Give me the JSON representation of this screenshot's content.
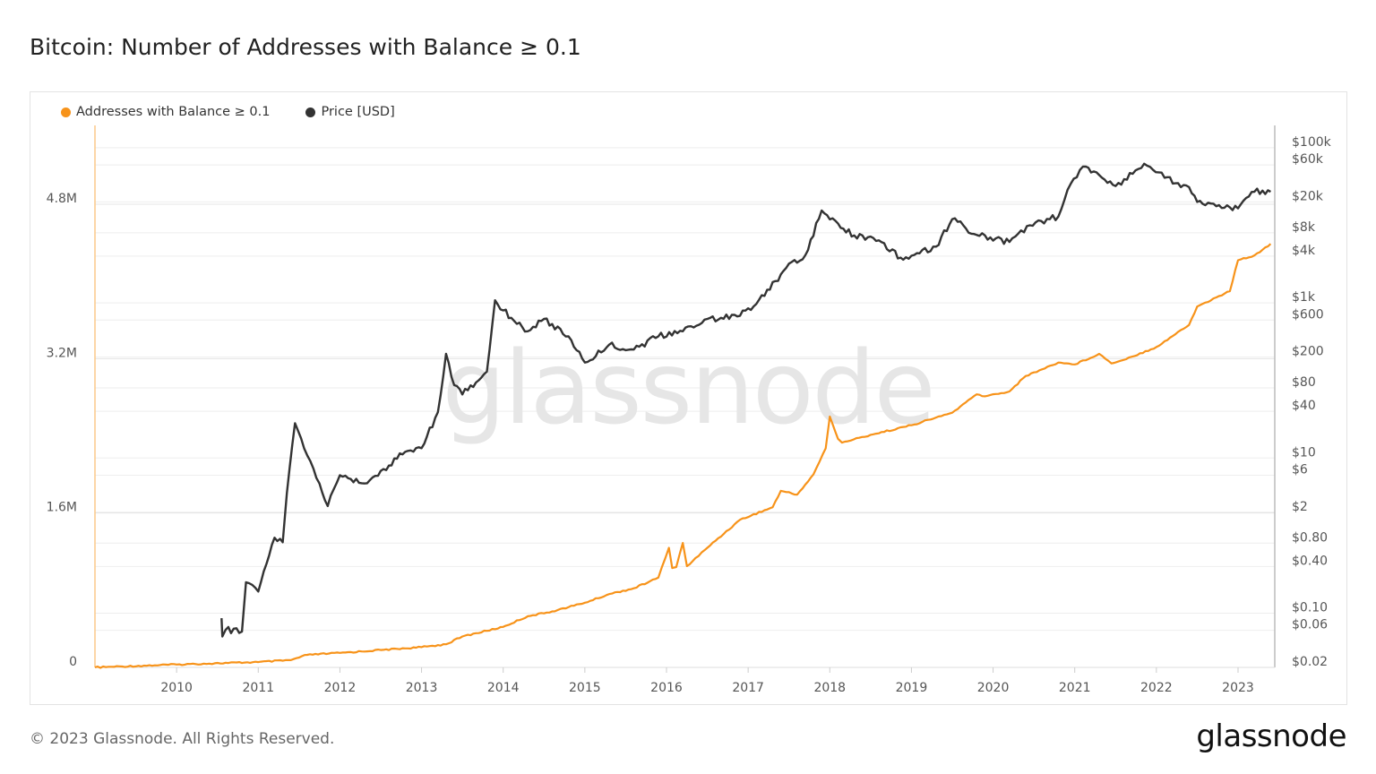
{
  "title": "Bitcoin: Number of Addresses with Balance ≥ 0.1",
  "footer": {
    "copyright": "© 2023 Glassnode. All Rights Reserved.",
    "logo": "glassnode"
  },
  "watermark": "glassnode",
  "chart_data": {
    "type": "line",
    "title": "Bitcoin: Number of Addresses with Balance ≥ 0.1",
    "legend_position": "top-left",
    "grid": true,
    "x_axis": {
      "ticks": [
        "2010",
        "2011",
        "2012",
        "2013",
        "2014",
        "2015",
        "2016",
        "2017",
        "2018",
        "2019",
        "2020",
        "2021",
        "2022",
        "2023"
      ],
      "range": [
        2009.0,
        2023.45
      ]
    },
    "y_left": {
      "ticks": [
        "0",
        "1.6M",
        "3.2M",
        "4.8M"
      ],
      "tick_values": [
        0,
        1.6,
        3.2,
        4.8
      ],
      "unit": "M",
      "range": [
        0,
        5.6
      ]
    },
    "y_right": {
      "scale": "log",
      "ticks": [
        "$100k",
        "$60k",
        "$20k",
        "$8k",
        "$4k",
        "$1k",
        "$600",
        "$200",
        "$80",
        "$40",
        "$10",
        "$6",
        "$2",
        "$0.80",
        "$0.40",
        "$0.10",
        "$0.06",
        "$0.02"
      ],
      "tick_values": [
        100000,
        60000,
        20000,
        8000,
        4000,
        1000,
        600,
        200,
        80,
        40,
        10,
        6,
        2,
        0.8,
        0.4,
        0.1,
        0.06,
        0.02
      ],
      "range": [
        0.02,
        100000
      ]
    },
    "series": [
      {
        "name": "Addresses with Balance ≥ 0.1",
        "color": "#f7931a",
        "axis": "left",
        "unit": "M",
        "x": [
          2009.0,
          2010.0,
          2011.0,
          2011.4,
          2011.6,
          2012.0,
          2012.5,
          2013.0,
          2013.3,
          2013.5,
          2014.0,
          2014.3,
          2014.6,
          2015.0,
          2015.3,
          2015.6,
          2015.9,
          2016.03,
          2016.07,
          2016.12,
          2016.2,
          2016.25,
          2016.5,
          2016.9,
          2017.3,
          2017.4,
          2017.6,
          2017.8,
          2017.95,
          2018.0,
          2018.1,
          2018.15,
          2018.5,
          2019.0,
          2019.5,
          2019.8,
          2019.9,
          2020.2,
          2020.4,
          2020.8,
          2021.0,
          2021.3,
          2021.45,
          2021.7,
          2022.0,
          2022.4,
          2022.5,
          2022.9,
          2023.0,
          2023.2,
          2023.4
        ],
        "values": [
          0,
          0.03,
          0.055,
          0.075,
          0.13,
          0.15,
          0.18,
          0.21,
          0.24,
          0.32,
          0.42,
          0.53,
          0.58,
          0.67,
          0.76,
          0.82,
          0.93,
          1.24,
          1.03,
          1.04,
          1.29,
          1.05,
          1.24,
          1.53,
          1.66,
          1.83,
          1.79,
          2.0,
          2.27,
          2.6,
          2.37,
          2.33,
          2.41,
          2.51,
          2.64,
          2.83,
          2.81,
          2.86,
          3.02,
          3.16,
          3.14,
          3.25,
          3.15,
          3.22,
          3.32,
          3.55,
          3.74,
          3.9,
          4.22,
          4.27,
          4.39
        ]
      },
      {
        "name": "Price [USD]",
        "color": "#333333",
        "axis": "right",
        "x": [
          2010.55,
          2010.56,
          2010.6,
          2010.8,
          2010.85,
          2011.0,
          2011.1,
          2011.2,
          2011.3,
          2011.35,
          2011.45,
          2011.6,
          2011.75,
          2011.85,
          2012.0,
          2012.3,
          2012.6,
          2012.8,
          2013.0,
          2013.2,
          2013.3,
          2013.4,
          2013.5,
          2013.8,
          2013.9,
          2014.0,
          2014.3,
          2014.5,
          2014.8,
          2015.0,
          2015.3,
          2015.6,
          2015.9,
          2016.2,
          2016.5,
          2016.9,
          2017.2,
          2017.5,
          2017.7,
          2017.9,
          2018.0,
          2018.3,
          2018.6,
          2018.9,
          2019.3,
          2019.5,
          2019.8,
          2020.2,
          2020.45,
          2020.8,
          2020.95,
          2021.1,
          2021.5,
          2021.85,
          2022.1,
          2022.4,
          2022.5,
          2022.9,
          2023.0,
          2023.2,
          2023.4
        ],
        "values": [
          0.086,
          0.05,
          0.061,
          0.058,
          0.25,
          0.19,
          0.43,
          0.94,
          0.82,
          3.5,
          28,
          10.8,
          4.7,
          2.4,
          6.0,
          4.7,
          8.0,
          12,
          13.4,
          39,
          220,
          87,
          66,
          130,
          1080,
          800,
          430,
          620,
          370,
          170,
          290,
          250,
          370,
          430,
          620,
          680,
          1230,
          3200,
          4100,
          15500,
          11900,
          7400,
          6400,
          3600,
          5300,
          12000,
          7500,
          6100,
          10000,
          13000,
          34000,
          57000,
          32000,
          62000,
          41000,
          31000,
          20000,
          17000,
          16500,
          27000,
          27000
        ]
      }
    ]
  }
}
